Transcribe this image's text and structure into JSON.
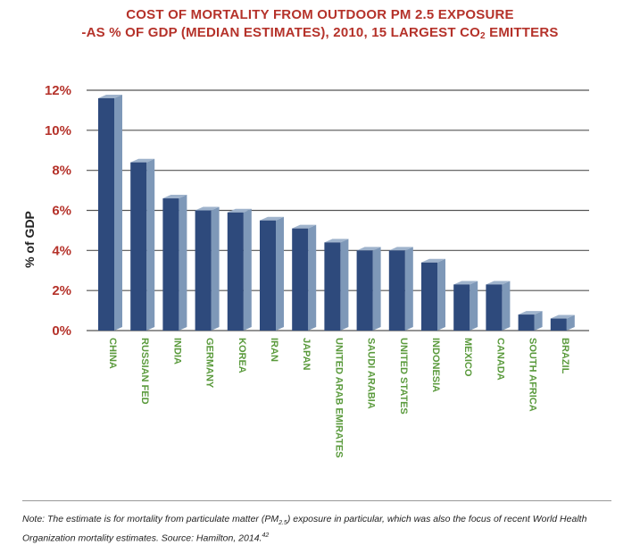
{
  "title_line1": "COST OF MORTALITY FROM OUTDOOR PM 2.5 EXPOSURE",
  "title_line2_prefix": "-AS % OF GDP (MEDIAN ESTIMATES), 2010, 15 LARGEST CO",
  "title_line2_sub": "2",
  "title_line2_suffix": " EMITTERS",
  "note": {
    "part1": "Note: The estimate is for mortality from particulate matter (PM",
    "sub": "2.5",
    "part2": ") exposure in particular, which was also the focus of recent World Health Organization mortality estimates. Source: Hamilton, 2014.",
    "sup": "42"
  },
  "colors": {
    "bar_front": "#2e4a7c",
    "bar_side": "#7e98b8",
    "bar_top": "#9fb3cc",
    "title": "#b5322a",
    "tick": "#b5322a",
    "category": "#5a9a3c"
  },
  "chart_data": {
    "type": "bar",
    "ylabel": "% of GDP",
    "ylim": [
      0,
      12
    ],
    "yticks": [
      "0%",
      "2%",
      "4%",
      "6%",
      "8%",
      "10%",
      "12%"
    ],
    "categories": [
      "CHINA",
      "RUSSIAN FED",
      "INDIA",
      "GERMANY",
      "KOREA",
      "IRAN",
      "JAPAN",
      "UNITED ARAB EMIRATES",
      "SAUDI ARABIA",
      "UNITED STATES",
      "INDONESIA",
      "MEXICO",
      "CANADA",
      "SOUTH AFRICA",
      "BRAZIL"
    ],
    "values": [
      11.6,
      8.4,
      6.6,
      6.0,
      5.9,
      5.5,
      5.1,
      4.4,
      4.0,
      4.0,
      3.4,
      2.3,
      2.3,
      0.8,
      0.6
    ],
    "grid": true,
    "legend": "none"
  }
}
